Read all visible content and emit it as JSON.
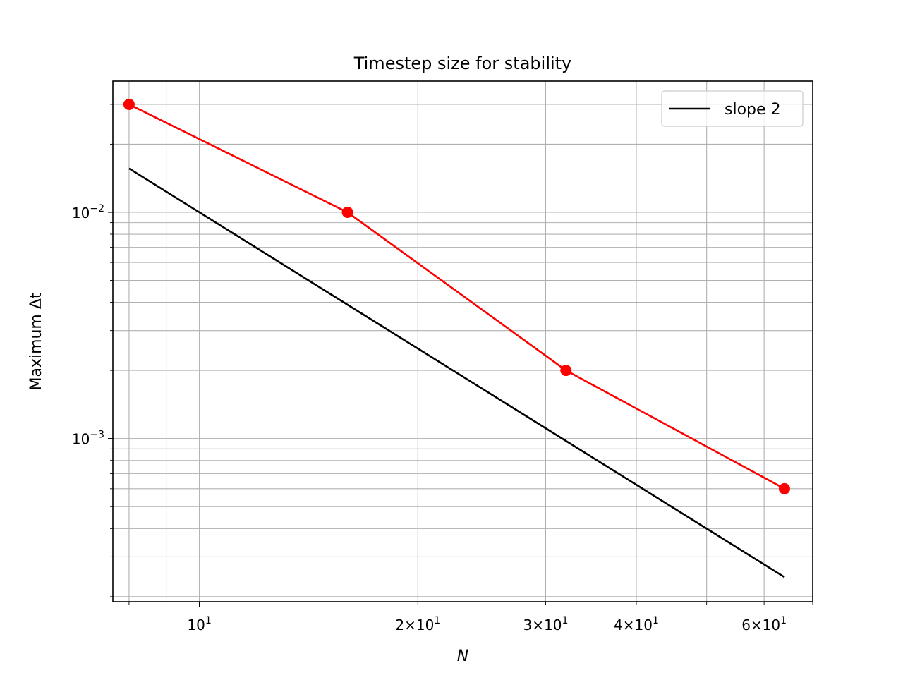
{
  "chart_data": {
    "type": "line",
    "title": "Timestep size for stability",
    "xlabel": "N",
    "ylabel": "Maximum Δt",
    "xscale": "log",
    "yscale": "log",
    "xlim": [
      7.6,
      70
    ],
    "ylim": [
      0.00019,
      0.038
    ],
    "grid": "both",
    "legend_position": "upper right",
    "x_tick_labels": [
      {
        "value": 10,
        "base": "10",
        "exp": "1"
      },
      {
        "value": 20,
        "base": "2×10",
        "exp": "1"
      },
      {
        "value": 30,
        "base": "3×10",
        "exp": "1"
      },
      {
        "value": 40,
        "base": "4×10",
        "exp": "1"
      },
      {
        "value": 60,
        "base": "6×10",
        "exp": "1"
      }
    ],
    "y_tick_labels": [
      {
        "value": 0.001,
        "base": "10",
        "exp": "−3"
      },
      {
        "value": 0.01,
        "base": "10",
        "exp": "−2"
      }
    ],
    "series": [
      {
        "name": "",
        "color": "#ff0000",
        "marker": "circle",
        "x": [
          8,
          16,
          32,
          64
        ],
        "y": [
          0.03,
          0.01,
          0.002,
          0.0006
        ]
      },
      {
        "name": "slope 2",
        "color": "#000000",
        "marker": "none",
        "x": [
          8,
          64
        ],
        "y": [
          0.015625,
          0.000244
        ]
      }
    ]
  }
}
